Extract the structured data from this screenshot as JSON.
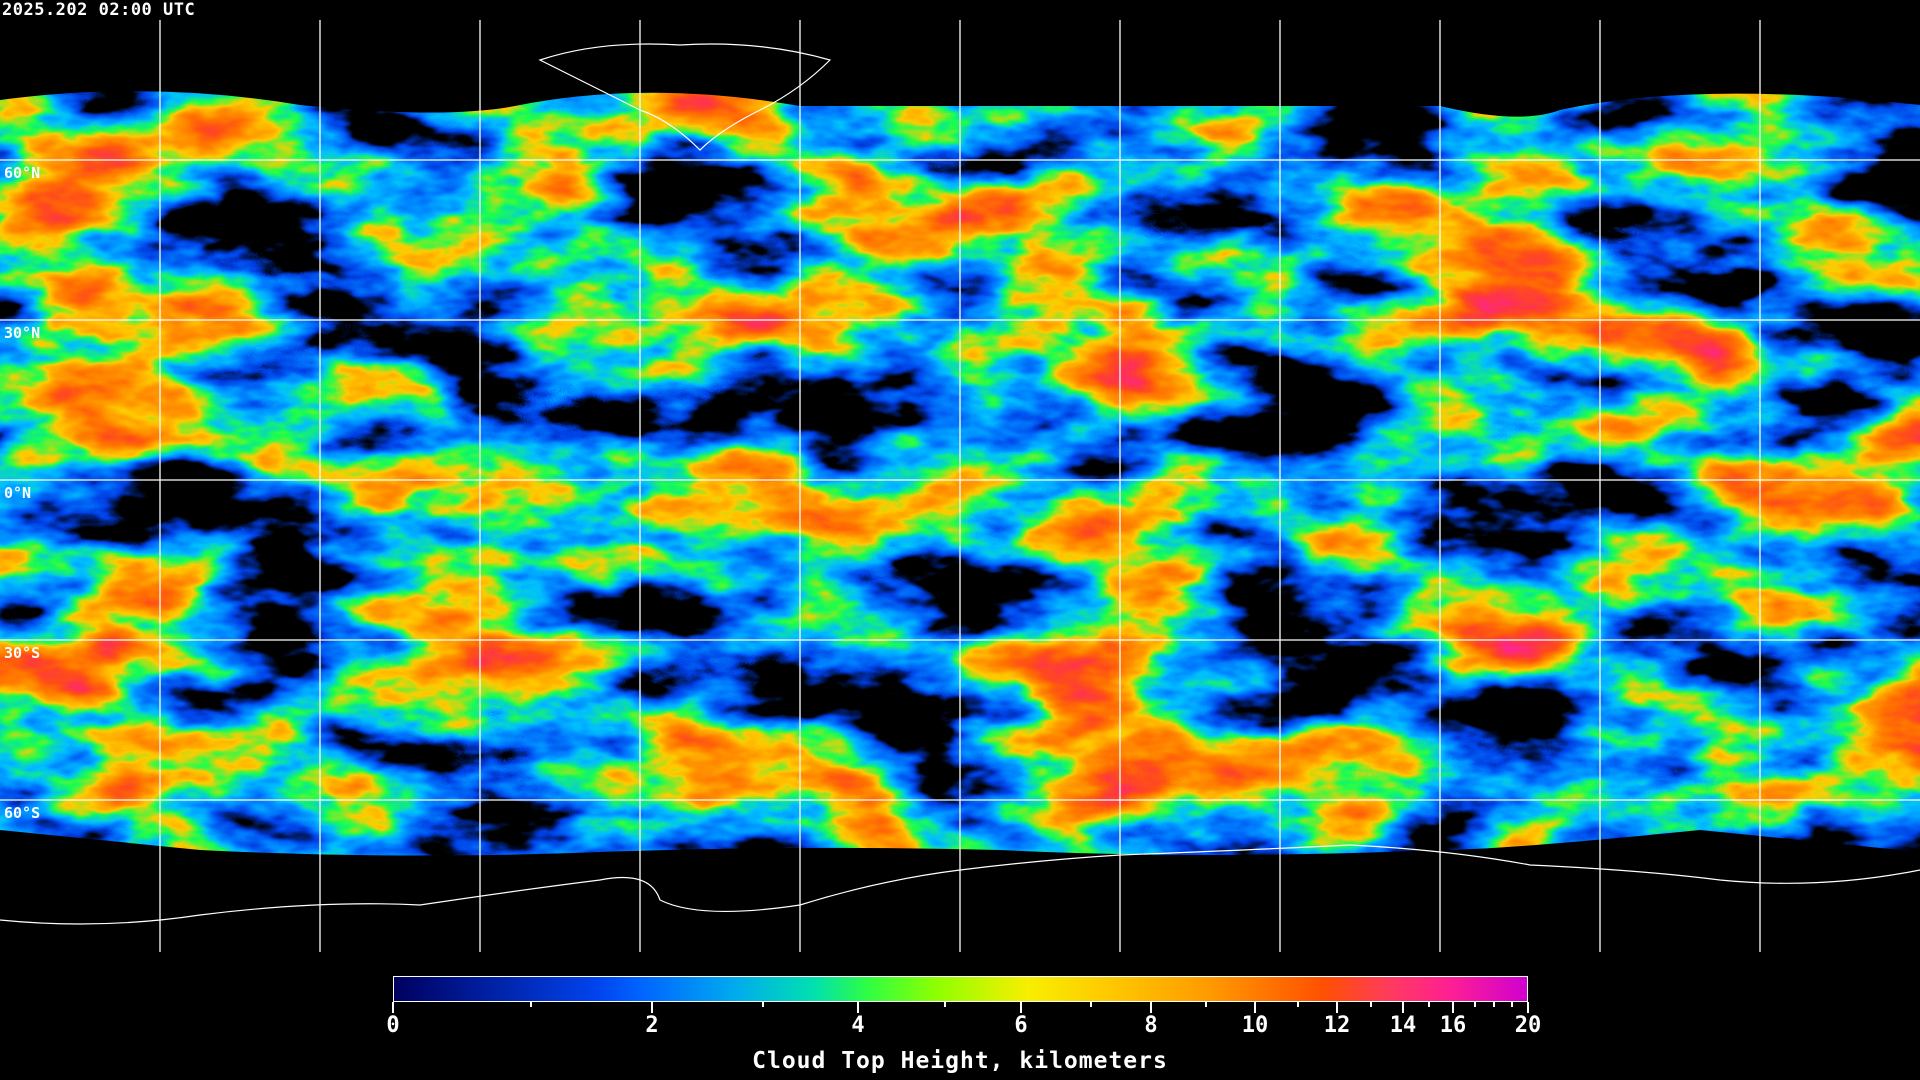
{
  "timestamp": "2025.202 02:00 UTC",
  "map": {
    "projection": "equirectangular",
    "grid_spacing_deg": 30,
    "gridline_color": "#ffffff",
    "coastline_color": "#ffffff",
    "background_color": "#000000",
    "lat_labels": [
      "60°N",
      "30°N",
      "0°N",
      "30°S",
      "60°S"
    ]
  },
  "colorbar": {
    "title": "Cloud Top Height, kilometers",
    "range": [
      0,
      20
    ],
    "tick_labels": [
      "0",
      "2",
      "4",
      "6",
      "8",
      "10",
      "12",
      "14",
      "16",
      "20"
    ],
    "minor_ticks": [
      1,
      3,
      5,
      7,
      9,
      11,
      13,
      15,
      17,
      18,
      19
    ],
    "colors": [
      "#000060",
      "#0044ee",
      "#0066ff",
      "#00aaee",
      "#00e0b0",
      "#30ff40",
      "#90ff00",
      "#f8ee00",
      "#ffc400",
      "#ff9a00",
      "#ff5000",
      "#ff3a60",
      "#ff2090",
      "#d000d0"
    ]
  }
}
